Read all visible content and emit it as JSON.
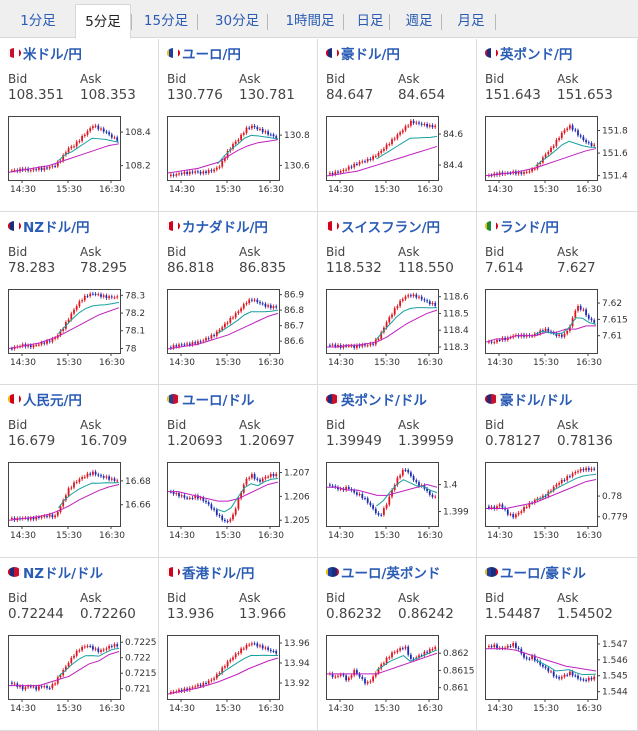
{
  "tabs": [
    {
      "label": "1分足",
      "active": false
    },
    {
      "label": "5分足",
      "active": true
    },
    {
      "label": "15分足",
      "active": false
    },
    {
      "label": "30分足",
      "active": false
    },
    {
      "label": "1時間足",
      "active": false
    },
    {
      "label": "日足",
      "active": false
    },
    {
      "label": "週足",
      "active": false
    },
    {
      "label": "月足",
      "active": false
    }
  ],
  "labels": {
    "bid": "Bid",
    "ask": "Ask"
  },
  "x_ticks": [
    "14:30",
    "15:30",
    "16:30"
  ],
  "colors": {
    "up": "#e0141e",
    "down": "#1c2bb3",
    "ma1": "#17a0a0",
    "ma2": "#c020c0",
    "link": "#2a5bb5"
  },
  "panels": [
    {
      "pair": "米ドル/円",
      "flag": "us-jp",
      "bid": "108.351",
      "ask": "108.353",
      "y_ticks": [
        "108.4",
        "108.2"
      ],
      "ylim": [
        108.12,
        108.49
      ],
      "trend": [
        108.17,
        108.17,
        108.18,
        108.17,
        108.18,
        108.18,
        108.19,
        108.2,
        108.24,
        108.3,
        108.32,
        108.36,
        108.4,
        108.44,
        108.42,
        108.4,
        108.37,
        108.35
      ],
      "ma": [
        108.16,
        108.17,
        108.18,
        108.19,
        108.2,
        108.22,
        108.24,
        108.26,
        108.28,
        108.3,
        108.32,
        108.33
      ]
    },
    {
      "pair": "ユーロ/円",
      "flag": "eu-jp",
      "bid": "130.776",
      "ask": "130.781",
      "y_ticks": [
        "130.8",
        "130.6"
      ],
      "ylim": [
        130.51,
        130.92
      ],
      "trend": [
        130.53,
        130.54,
        130.55,
        130.55,
        130.56,
        130.55,
        130.56,
        130.57,
        130.6,
        130.68,
        130.74,
        130.78,
        130.84,
        130.86,
        130.84,
        130.82,
        130.8,
        130.78
      ],
      "ma": [
        130.55,
        130.56,
        130.57,
        130.58,
        130.6,
        130.62,
        130.66,
        130.7,
        130.73,
        130.75,
        130.76,
        130.77
      ]
    },
    {
      "pair": "豪ドル/円",
      "flag": "au-jp",
      "bid": "84.647",
      "ask": "84.654",
      "y_ticks": [
        "84.6",
        "84.4"
      ],
      "ylim": [
        84.31,
        84.71
      ],
      "trend": [
        84.34,
        84.35,
        84.36,
        84.38,
        84.4,
        84.42,
        84.43,
        84.45,
        84.48,
        84.52,
        84.56,
        84.6,
        84.64,
        84.68,
        84.67,
        84.66,
        84.65,
        84.65
      ],
      "ma": [
        84.33,
        84.34,
        84.35,
        84.36,
        84.38,
        84.4,
        84.42,
        84.44,
        84.46,
        84.48,
        84.5,
        84.52
      ]
    },
    {
      "pair": "英ポンド/円",
      "flag": "uk-jp",
      "bid": "151.643",
      "ask": "151.653",
      "y_ticks": [
        "151.8",
        "151.6",
        "151.4"
      ],
      "ylim": [
        151.37,
        151.92
      ],
      "trend": [
        151.4,
        151.41,
        151.42,
        151.42,
        151.43,
        151.42,
        151.43,
        151.45,
        151.5,
        151.58,
        151.64,
        151.72,
        151.8,
        151.84,
        151.78,
        151.72,
        151.68,
        151.66
      ],
      "ma": [
        151.4,
        151.41,
        151.42,
        151.43,
        151.45,
        151.47,
        151.5,
        151.53,
        151.56,
        151.59,
        151.62,
        151.64
      ]
    },
    {
      "pair": "NZドル/円",
      "flag": "nz-jp",
      "bid": "78.283",
      "ask": "78.295",
      "y_ticks": [
        "78.3",
        "78.2",
        "78.1",
        "78"
      ],
      "ylim": [
        77.98,
        78.33
      ],
      "trend": [
        78.0,
        78.01,
        78.02,
        78.01,
        78.02,
        78.03,
        78.04,
        78.06,
        78.1,
        78.16,
        78.22,
        78.27,
        78.3,
        78.31,
        78.3,
        78.29,
        78.29,
        78.29
      ],
      "ma": [
        78.0,
        78.01,
        78.02,
        78.03,
        78.05,
        78.07,
        78.1,
        78.13,
        78.16,
        78.19,
        78.21,
        78.23
      ]
    },
    {
      "pair": "カナダドル/円",
      "flag": "ca-jp",
      "bid": "86.818",
      "ask": "86.835",
      "y_ticks": [
        "86.9",
        "86.8",
        "86.7",
        "86.6"
      ],
      "ylim": [
        86.53,
        86.93
      ],
      "trend": [
        86.56,
        86.57,
        86.58,
        86.58,
        86.59,
        86.6,
        86.62,
        86.64,
        86.68,
        86.72,
        86.76,
        86.8,
        86.85,
        86.87,
        86.85,
        86.83,
        86.82,
        86.82
      ],
      "ma": [
        86.55,
        86.56,
        86.57,
        86.58,
        86.6,
        86.62,
        86.64,
        86.67,
        86.7,
        86.73,
        86.76,
        86.78
      ]
    },
    {
      "pair": "スイスフラン/円",
      "flag": "ch-jp",
      "bid": "118.532",
      "ask": "118.550",
      "y_ticks": [
        "118.6",
        "118.5",
        "118.4",
        "118.3"
      ],
      "ylim": [
        118.27,
        118.64
      ],
      "trend": [
        118.31,
        118.31,
        118.3,
        118.31,
        118.3,
        118.31,
        118.31,
        118.32,
        118.36,
        118.44,
        118.5,
        118.56,
        118.6,
        118.61,
        118.6,
        118.58,
        118.56,
        118.55
      ],
      "ma": [
        118.3,
        118.3,
        118.31,
        118.31,
        118.32,
        118.33,
        118.36,
        118.4,
        118.44,
        118.47,
        118.5,
        118.52
      ]
    },
    {
      "pair": "ランド/円",
      "flag": "za-jp",
      "bid": "7.614",
      "ask": "7.627",
      "y_ticks": [
        "7.62",
        "7.615",
        "7.61"
      ],
      "ylim": [
        7.605,
        7.624
      ],
      "trend": [
        7.608,
        7.608,
        7.609,
        7.609,
        7.61,
        7.61,
        7.61,
        7.61,
        7.611,
        7.612,
        7.611,
        7.61,
        7.61,
        7.613,
        7.619,
        7.618,
        7.615,
        7.614
      ],
      "ma": [
        7.608,
        7.609,
        7.609,
        7.61,
        7.61,
        7.61,
        7.611,
        7.611,
        7.612,
        7.612,
        7.613,
        7.613
      ]
    },
    {
      "pair": "人民元/円",
      "flag": "cn-jp",
      "bid": "16.679",
      "ask": "16.709",
      "y_ticks": [
        "16.68",
        "16.66"
      ],
      "ylim": [
        16.643,
        16.695
      ],
      "trend": [
        16.648,
        16.648,
        16.649,
        16.648,
        16.649,
        16.65,
        16.651,
        16.65,
        16.66,
        16.672,
        16.678,
        16.682,
        16.685,
        16.687,
        16.684,
        16.683,
        16.681,
        16.68
      ],
      "ma": [
        16.647,
        16.648,
        16.649,
        16.65,
        16.652,
        16.655,
        16.659,
        16.664,
        16.668,
        16.672,
        16.675,
        16.677
      ]
    },
    {
      "pair": "ユーロ/ドル",
      "flag": "eu-us",
      "bid": "1.20693",
      "ask": "1.20697",
      "y_ticks": [
        "1.207",
        "1.206",
        "1.205"
      ],
      "ylim": [
        1.2048,
        1.2074
      ],
      "trend": [
        1.2062,
        1.2061,
        1.206,
        1.2059,
        1.206,
        1.2059,
        1.2057,
        1.2054,
        1.2051,
        1.2049,
        1.2052,
        1.206,
        1.2067,
        1.2069,
        1.2066,
        1.2068,
        1.2069,
        1.2069
      ],
      "ma": [
        1.2062,
        1.2062,
        1.2061,
        1.206,
        1.2059,
        1.2058,
        1.2058,
        1.2059,
        1.2061,
        1.2063,
        1.2065,
        1.2066
      ]
    },
    {
      "pair": "英ポンド/ドル",
      "flag": "uk-us",
      "bid": "1.39949",
      "ask": "1.39959",
      "y_ticks": [
        "1.4",
        "1.399"
      ],
      "ylim": [
        1.3985,
        1.4008
      ],
      "trend": [
        1.4,
        1.3999,
        1.3998,
        1.3999,
        1.3997,
        1.3996,
        1.3994,
        1.3991,
        1.3988,
        1.3992,
        1.3998,
        1.4003,
        1.4006,
        1.4003,
        1.4,
        1.3999,
        1.3996,
        1.3995
      ],
      "ma": [
        1.3999,
        1.3999,
        1.3998,
        1.3998,
        1.3997,
        1.3996,
        1.3996,
        1.3997,
        1.3998,
        1.3999,
        1.4,
        1.3999
      ]
    },
    {
      "pair": "豪ドル/ドル",
      "flag": "au-us",
      "bid": "0.78127",
      "ask": "0.78136",
      "y_ticks": [
        "0.78",
        "0.779"
      ],
      "ylim": [
        0.7786,
        0.7816
      ],
      "trend": [
        0.7795,
        0.7794,
        0.7796,
        0.7792,
        0.779,
        0.7792,
        0.7795,
        0.7797,
        0.7799,
        0.78,
        0.7803,
        0.7806,
        0.7808,
        0.781,
        0.7812,
        0.7813,
        0.7813,
        0.7813
      ],
      "ma": [
        0.7794,
        0.7794,
        0.7794,
        0.7795,
        0.7796,
        0.7797,
        0.7799,
        0.7801,
        0.7803,
        0.7805,
        0.7807,
        0.7808
      ]
    },
    {
      "pair": "NZドル/ドル",
      "flag": "nz-us",
      "bid": "0.72244",
      "ask": "0.72260",
      "y_ticks": [
        "0.7225",
        "0.722",
        "0.7215",
        "0.721"
      ],
      "ylim": [
        0.7207,
        0.7227
      ],
      "trend": [
        0.7212,
        0.7211,
        0.721,
        0.7211,
        0.721,
        0.7211,
        0.721,
        0.7212,
        0.7215,
        0.7218,
        0.7221,
        0.7223,
        0.7224,
        0.7223,
        0.7222,
        0.7223,
        0.7224,
        0.7224
      ],
      "ma": [
        0.7211,
        0.7211,
        0.7211,
        0.7211,
        0.7212,
        0.7213,
        0.7214,
        0.7216,
        0.7218,
        0.7219,
        0.7221,
        0.7222
      ]
    },
    {
      "pair": "香港ドル/円",
      "flag": "hk-jp",
      "bid": "13.936",
      "ask": "13.966",
      "y_ticks": [
        "13.96",
        "13.94",
        "13.92"
      ],
      "ylim": [
        13.905,
        13.967
      ],
      "trend": [
        13.91,
        13.912,
        13.913,
        13.914,
        13.917,
        13.918,
        13.921,
        13.925,
        13.932,
        13.94,
        13.946,
        13.952,
        13.957,
        13.96,
        13.957,
        13.955,
        13.952,
        13.95
      ],
      "ma": [
        13.909,
        13.911,
        13.913,
        13.915,
        13.918,
        13.921,
        13.925,
        13.929,
        13.934,
        13.938,
        13.942,
        13.945
      ]
    },
    {
      "pair": "ユーロ/英ポンド",
      "flag": "eu-uk",
      "bid": "0.86232",
      "ask": "0.86242",
      "y_ticks": [
        "0.862",
        "0.8615",
        "0.861"
      ],
      "ylim": [
        0.8607,
        0.8625
      ],
      "trend": [
        0.8614,
        0.8613,
        0.8614,
        0.8612,
        0.8615,
        0.8613,
        0.8611,
        0.8613,
        0.8616,
        0.8618,
        0.862,
        0.8621,
        0.8622,
        0.8618,
        0.8619,
        0.862,
        0.8621,
        0.8622
      ],
      "ma": [
        0.8614,
        0.8614,
        0.8614,
        0.8614,
        0.8614,
        0.8614,
        0.8615,
        0.8616,
        0.8617,
        0.8618,
        0.8619,
        0.862
      ]
    },
    {
      "pair": "ユーロ/豪ドル",
      "flag": "eu-au",
      "bid": "1.54487",
      "ask": "1.54502",
      "y_ticks": [
        "1.547",
        "1.546",
        "1.545",
        "1.544"
      ],
      "ylim": [
        1.5436,
        1.5475
      ],
      "trend": [
        1.5468,
        1.5469,
        1.5467,
        1.5468,
        1.547,
        1.5466,
        1.546,
        1.5462,
        1.5458,
        1.5455,
        1.5452,
        1.5448,
        1.545,
        1.5452,
        1.5449,
        1.5447,
        1.5448,
        1.5449
      ],
      "ma": [
        1.5467,
        1.5467,
        1.5467,
        1.5466,
        1.5464,
        1.5462,
        1.546,
        1.5458,
        1.5456,
        1.5455,
        1.5454,
        1.5453
      ]
    }
  ]
}
